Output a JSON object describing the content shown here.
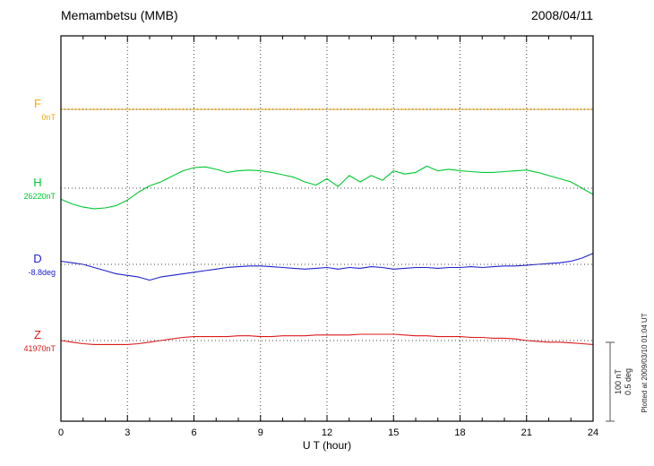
{
  "header": {
    "station": "Memambetsu (MMB)",
    "date": "2008/04/11"
  },
  "axis": {
    "xlabel": "U T (hour)",
    "xlim": [
      0,
      24
    ],
    "xticks": [
      0,
      3,
      6,
      9,
      12,
      15,
      18,
      21,
      24
    ]
  },
  "scale_bar": {
    "nt_label": "100 nT",
    "deg_label": "0.5 deg"
  },
  "footer": {
    "plotted_at": "Plotted at 2009/03/10 01:04 UT"
  },
  "chart_data": {
    "type": "line",
    "title": "Memambetsu (MMB) magnetogram 2008/04/11",
    "xlabel": "U T (hour)",
    "xlim": [
      0,
      24
    ],
    "grid": "dotted vertical lines every 3 hours; dotted horizontal baseline per component",
    "scale": {
      "nT_per_division": 100,
      "deg_per_division": 0.5
    },
    "x_hours": [
      0,
      0.5,
      1,
      1.5,
      2,
      2.5,
      3,
      3.5,
      4,
      4.5,
      5,
      5.5,
      6,
      6.5,
      7,
      7.5,
      8,
      8.5,
      9,
      9.5,
      10,
      10.5,
      11,
      11.5,
      12,
      12.5,
      13,
      13.5,
      14,
      14.5,
      15,
      15.5,
      16,
      16.5,
      17,
      17.5,
      18,
      18.5,
      19,
      19.5,
      20,
      20.5,
      21,
      21.5,
      22,
      22.5,
      23,
      23.5,
      24
    ],
    "series": [
      {
        "name": "F",
        "unit": "nT",
        "baseline_label": "0nT",
        "baseline_value": 0,
        "color": "#F5A800",
        "values": [
          0,
          0,
          0,
          0,
          0,
          0,
          0,
          0,
          0,
          0,
          0,
          0,
          0,
          0,
          0,
          0,
          0,
          0,
          0,
          0,
          0,
          0,
          0,
          0,
          0,
          0,
          0,
          0,
          0,
          0,
          0,
          0,
          0,
          0,
          0,
          0,
          0,
          0,
          0,
          0,
          0,
          0,
          0,
          0,
          0,
          0,
          0,
          0,
          0
        ]
      },
      {
        "name": "H",
        "unit": "nT",
        "baseline_label": "26220nT",
        "baseline_value": 26220,
        "color": "#00C832",
        "values": [
          -14,
          -20,
          -24,
          -26,
          -25,
          -22,
          -15,
          -5,
          3,
          8,
          15,
          22,
          26,
          27,
          24,
          20,
          22,
          23,
          22,
          20,
          17,
          14,
          8,
          4,
          12,
          2,
          16,
          8,
          16,
          10,
          22,
          18,
          20,
          28,
          22,
          24,
          22,
          21,
          20,
          20,
          21,
          22,
          23,
          20,
          16,
          12,
          8,
          0,
          -8
        ]
      },
      {
        "name": "D",
        "unit": "deg",
        "baseline_label": "-8.8deg",
        "baseline_value": -8.8,
        "color": "#2020CC",
        "values": [
          0.02,
          0.01,
          0,
          -0.02,
          -0.04,
          -0.06,
          -0.07,
          -0.08,
          -0.1,
          -0.08,
          -0.07,
          -0.06,
          -0.05,
          -0.04,
          -0.03,
          -0.02,
          -0.015,
          -0.01,
          -0.01,
          -0.015,
          -0.02,
          -0.025,
          -0.03,
          -0.025,
          -0.02,
          -0.03,
          -0.02,
          -0.025,
          -0.015,
          -0.02,
          -0.03,
          -0.025,
          -0.02,
          -0.02,
          -0.025,
          -0.02,
          -0.02,
          -0.015,
          -0.02,
          -0.015,
          -0.01,
          -0.01,
          -0.005,
          0,
          0.005,
          0.01,
          0.02,
          0.04,
          0.07
        ]
      },
      {
        "name": "Z",
        "unit": "nT",
        "baseline_label": "41970nT",
        "baseline_value": 41970,
        "color": "#DC1919",
        "values": [
          0,
          -2,
          -4,
          -5,
          -5,
          -5,
          -5,
          -4,
          -2,
          0,
          2,
          4,
          5,
          5,
          5,
          5,
          6,
          6,
          5,
          5,
          6,
          6,
          6,
          7,
          7,
          7,
          7,
          8,
          8,
          8,
          8,
          7,
          6,
          6,
          5,
          5,
          5,
          4,
          4,
          3,
          3,
          2,
          0,
          -1,
          -2,
          -2,
          -3,
          -4,
          -5
        ]
      }
    ]
  }
}
